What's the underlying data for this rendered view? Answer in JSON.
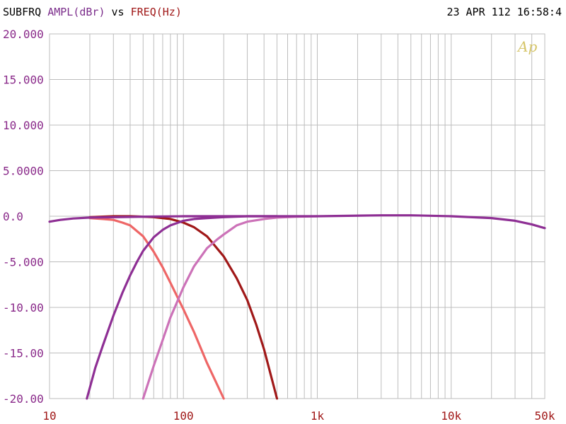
{
  "header": {
    "label_a": "SUBFRQ",
    "label_b": "AMPL(dBr)",
    "label_vs": "vs",
    "label_c": "FREQ(Hz)",
    "date": "23 APR 112",
    "time": "16:58:4",
    "logo": "Ap"
  },
  "colors": {
    "label_a": "#000000",
    "label_b": "#7b2d8b",
    "label_c": "#a01818",
    "ytick": "#8a2a8a",
    "xtick": "#a01818",
    "grid": "#bdbdbd",
    "logo": "#d6c56a"
  },
  "chart_data": {
    "type": "line",
    "xscale": "log",
    "xlim": [
      10,
      50000
    ],
    "ylim": [
      -20,
      20
    ],
    "grid": true,
    "y_ticks": [
      {
        "value": 20,
        "label": "20.000"
      },
      {
        "value": 15,
        "label": "15.000"
      },
      {
        "value": 10,
        "label": "10.000"
      },
      {
        "value": 5,
        "label": "5.0000"
      },
      {
        "value": 0,
        "label": "0.0"
      },
      {
        "value": -5,
        "label": "-5.000"
      },
      {
        "value": -10,
        "label": "-10.00"
      },
      {
        "value": -15,
        "label": "-15.00"
      },
      {
        "value": -20,
        "label": "-20.00"
      }
    ],
    "x_ticks": [
      {
        "value": 10,
        "label": "10"
      },
      {
        "value": 100,
        "label": "100"
      },
      {
        "value": 1000,
        "label": "1k"
      },
      {
        "value": 10000,
        "label": "10k"
      },
      {
        "value": 50000,
        "label": "50k"
      }
    ],
    "series": [
      {
        "color": "#ee6666",
        "x": [
          20,
          25,
          30,
          35,
          40,
          50,
          60,
          70,
          80,
          100,
          120,
          150,
          200
        ],
        "y": [
          -0.2,
          -0.3,
          -0.4,
          -0.7,
          -1.0,
          -2.2,
          -3.9,
          -5.6,
          -7.3,
          -10.2,
          -12.7,
          -16.1,
          -20.0
        ]
      },
      {
        "color": "#a01818",
        "x": [
          20,
          25,
          30,
          40,
          50,
          60,
          80,
          100,
          120,
          150,
          200,
          250,
          300,
          350,
          400,
          500
        ],
        "y": [
          -0.1,
          -0.05,
          0.0,
          0.0,
          -0.05,
          -0.1,
          -0.3,
          -0.7,
          -1.2,
          -2.2,
          -4.4,
          -6.8,
          -9.2,
          -11.9,
          -14.6,
          -20.0
        ]
      },
      {
        "color": "#8e2f94",
        "x": [
          19,
          22,
          25,
          30,
          35,
          40,
          45,
          50,
          60,
          70,
          80,
          100,
          120,
          150,
          200,
          300,
          500
        ],
        "y": [
          -20.0,
          -16.6,
          -14.2,
          -10.9,
          -8.4,
          -6.5,
          -5.0,
          -3.8,
          -2.3,
          -1.5,
          -1.0,
          -0.5,
          -0.3,
          -0.2,
          -0.1,
          0.0,
          0.0
        ]
      },
      {
        "color": "#cc72b8",
        "x": [
          50,
          60,
          70,
          80,
          100,
          120,
          150,
          180,
          200,
          250,
          300,
          400,
          500,
          700,
          1000
        ],
        "y": [
          -20.0,
          -16.4,
          -13.6,
          -11.1,
          -7.8,
          -5.5,
          -3.5,
          -2.5,
          -2.0,
          -1.0,
          -0.6,
          -0.3,
          -0.15,
          -0.05,
          0.0
        ]
      },
      {
        "color": "#8e2f94",
        "x": [
          10,
          12,
          15,
          20,
          50,
          100,
          500,
          1000,
          3000,
          5000,
          10000,
          20000,
          30000,
          40000,
          50000
        ],
        "y": [
          -0.6,
          -0.4,
          -0.25,
          -0.15,
          -0.05,
          0.0,
          0.0,
          0.0,
          0.1,
          0.1,
          0.0,
          -0.2,
          -0.5,
          -0.9,
          -1.3
        ]
      }
    ]
  }
}
